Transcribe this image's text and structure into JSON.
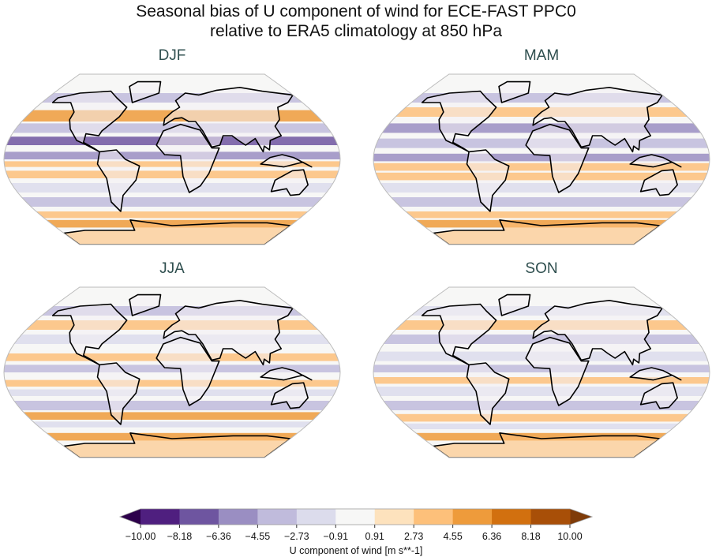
{
  "title": {
    "line1": "Seasonal bias of U component of wind for ECE-FAST PPC0",
    "line2": "relative to ERA5 climatology at 850 hPa"
  },
  "panels": [
    {
      "title": "DJF"
    },
    {
      "title": "MAM"
    },
    {
      "title": "JJA"
    },
    {
      "title": "SON"
    }
  ],
  "colorbar": {
    "label": "U component of wind [m s**-1]",
    "ticks": [
      "−10.00",
      "−8.18",
      "−6.36",
      "−4.55",
      "−2.73",
      "−0.91",
      "0.91",
      "2.73",
      "4.55",
      "6.36",
      "8.18",
      "10.00"
    ],
    "under_color": "#2d004b",
    "over_color": "#7f3b08",
    "colors": [
      "#4f1f7f",
      "#6e55a0",
      "#9a8ec2",
      "#c0bbdc",
      "#dcdcec",
      "#f7f7f6",
      "#fde2bd",
      "#fdc07a",
      "#ee9b3b",
      "#d2700f",
      "#a84f08"
    ],
    "extend": "both"
  }
}
